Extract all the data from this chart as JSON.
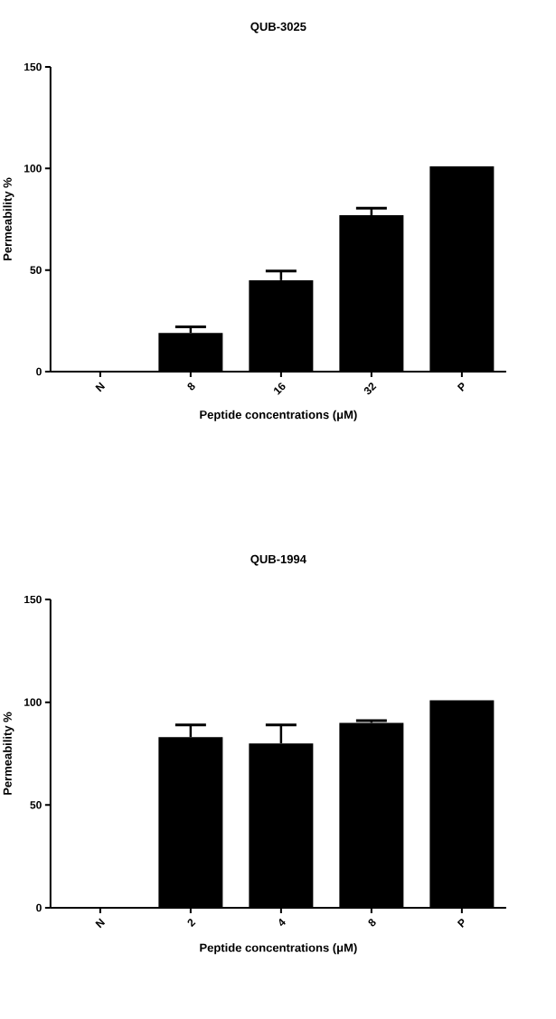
{
  "chart_data": [
    {
      "type": "bar",
      "title": "QUB-3025",
      "xlabel": "Peptide concentrations (μM)",
      "ylabel": "Permeability %",
      "categories": [
        "N",
        "8",
        "16",
        "32",
        "P"
      ],
      "values": [
        0,
        19,
        45,
        77,
        101
      ],
      "errors": [
        null,
        [
          19,
          22
        ],
        [
          45,
          49.5
        ],
        [
          77,
          80.5
        ],
        null
      ],
      "color": "#000000",
      "ylim": [
        0,
        150
      ],
      "yticks": [
        0,
        50,
        100,
        150
      ]
    },
    {
      "type": "bar",
      "title": "QUB-1994",
      "xlabel": "Peptide concentrations (μM)",
      "ylabel": "Permeability %",
      "categories": [
        "N",
        "2",
        "4",
        "8",
        "P"
      ],
      "values": [
        0,
        83,
        80,
        90,
        101
      ],
      "errors": [
        null,
        [
          83,
          89
        ],
        [
          80,
          89
        ],
        [
          90,
          91
        ],
        null
      ],
      "color": "#000000",
      "ylim": [
        0,
        150
      ],
      "yticks": [
        0,
        50,
        100,
        150
      ]
    }
  ]
}
